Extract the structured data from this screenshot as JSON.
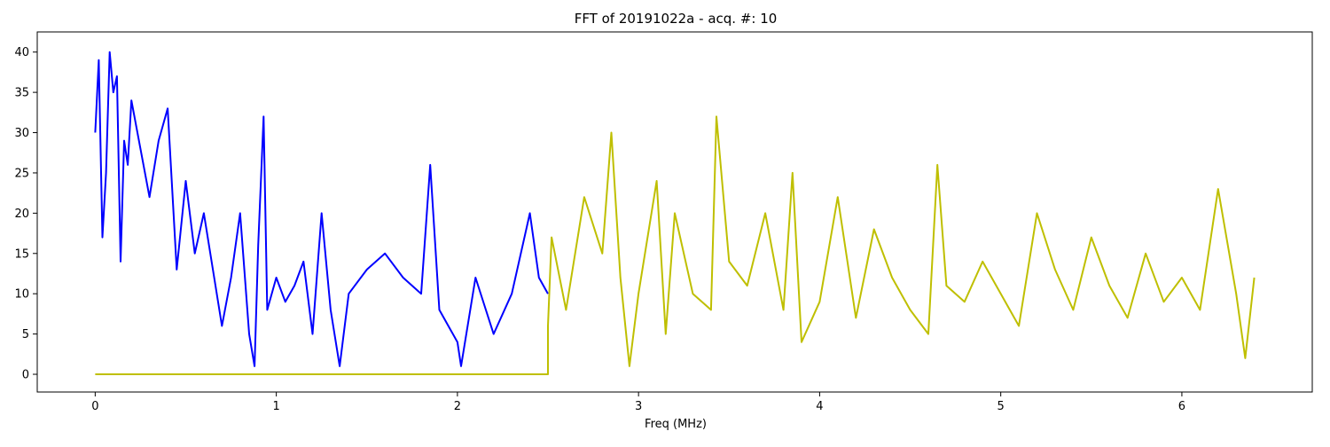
{
  "chart_data": {
    "type": "line",
    "title": "FFT of 20191022a - acq. #: 10",
    "xlabel": "Freq (MHz)",
    "ylabel": "",
    "xlim": [
      -0.32,
      6.72
    ],
    "ylim": [
      -2.2,
      42.5
    ],
    "x_ticks": [
      0,
      1,
      2,
      3,
      4,
      5,
      6
    ],
    "y_ticks": [
      0,
      5,
      10,
      15,
      20,
      25,
      30,
      35,
      40
    ],
    "grid": false,
    "legend": "none",
    "x_range": [
      0,
      6.4
    ],
    "series": [
      {
        "color": "#0000ff",
        "x": [
          0,
          0.02,
          0.04,
          0.06,
          0.08,
          0.1,
          0.12,
          0.14,
          0.16,
          0.18,
          0.2,
          0.25,
          0.3,
          0.35,
          0.4,
          0.45,
          0.5,
          0.55,
          0.6,
          0.65,
          0.7,
          0.75,
          0.8,
          0.85,
          0.88,
          0.9,
          0.93,
          0.95,
          1.0,
          1.05,
          1.1,
          1.15,
          1.2,
          1.25,
          1.3,
          1.35,
          1.4,
          1.5,
          1.6,
          1.7,
          1.8,
          1.85,
          1.9,
          2.0,
          2.02,
          2.1,
          2.2,
          2.3,
          2.4,
          2.45,
          2.5
        ],
        "values": [
          30,
          39,
          17,
          25,
          40,
          35,
          37,
          14,
          29,
          26,
          34,
          28,
          22,
          29,
          33,
          13,
          24,
          15,
          20,
          13,
          6,
          12,
          20,
          5,
          1,
          16,
          32,
          8,
          12,
          9,
          11,
          14,
          5,
          20,
          8,
          1,
          10,
          13,
          15,
          12,
          10,
          26,
          8,
          4,
          1,
          12,
          5,
          10,
          20,
          12,
          10
        ]
      },
      {
        "color": "#bfbf00",
        "x": [
          0,
          2.5,
          2.5,
          2.52,
          2.6,
          2.7,
          2.8,
          2.85,
          2.9,
          2.95,
          3.0,
          3.1,
          3.15,
          3.2,
          3.3,
          3.4,
          3.43,
          3.5,
          3.6,
          3.7,
          3.8,
          3.85,
          3.9,
          4.0,
          4.1,
          4.2,
          4.3,
          4.4,
          4.5,
          4.6,
          4.65,
          4.7,
          4.8,
          4.9,
          5.0,
          5.1,
          5.2,
          5.3,
          5.4,
          5.5,
          5.6,
          5.7,
          5.8,
          5.9,
          6.0,
          6.1,
          6.2,
          6.3,
          6.35,
          6.4
        ],
        "values": [
          0,
          0,
          6,
          17,
          8,
          22,
          15,
          30,
          12,
          1,
          10,
          24,
          5,
          20,
          10,
          8,
          32,
          14,
          11,
          20,
          8,
          25,
          4,
          9,
          22,
          7,
          18,
          12,
          8,
          5,
          26,
          11,
          9,
          14,
          10,
          6,
          20,
          13,
          8,
          17,
          11,
          7,
          15,
          9,
          12,
          8,
          23,
          10,
          2,
          12
        ]
      }
    ]
  }
}
